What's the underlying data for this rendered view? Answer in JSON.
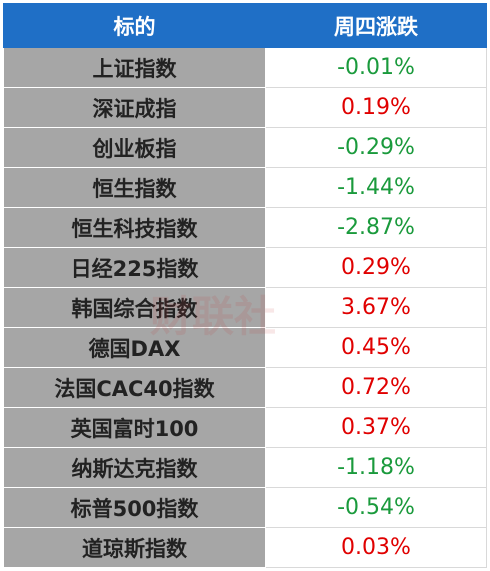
{
  "table": {
    "header": [
      "标的",
      "周四涨跌"
    ],
    "rows": [
      [
        "上证指数",
        "-0.01%"
      ],
      [
        "深证成指",
        "0.19%"
      ],
      [
        "创业板指",
        "-0.29%"
      ],
      [
        "恒生指数",
        "-1.44%"
      ],
      [
        "恒生科技指数",
        "-2.87%"
      ],
      [
        "日经225指数",
        "0.29%"
      ],
      [
        "韩国综合指数",
        "3.67%"
      ],
      [
        "德国DAX",
        "0.45%"
      ],
      [
        "法国CAC40指数",
        "0.72%"
      ],
      [
        "英国富时100",
        "0.37%"
      ],
      [
        "纳斯达克指数",
        "-1.18%"
      ],
      [
        "标普500指数",
        "-0.54%"
      ],
      [
        "道琼斯指数",
        "0.03%"
      ]
    ],
    "row_colors": [
      "#1a9a3c",
      "#e00000",
      "#1a9a3c",
      "#1a9a3c",
      "#1a9a3c",
      "#e00000",
      "#e00000",
      "#e00000",
      "#e00000",
      "#e00000",
      "#1a9a3c",
      "#1a9a3c",
      "#e00000"
    ]
  },
  "watermark": "财联社"
}
